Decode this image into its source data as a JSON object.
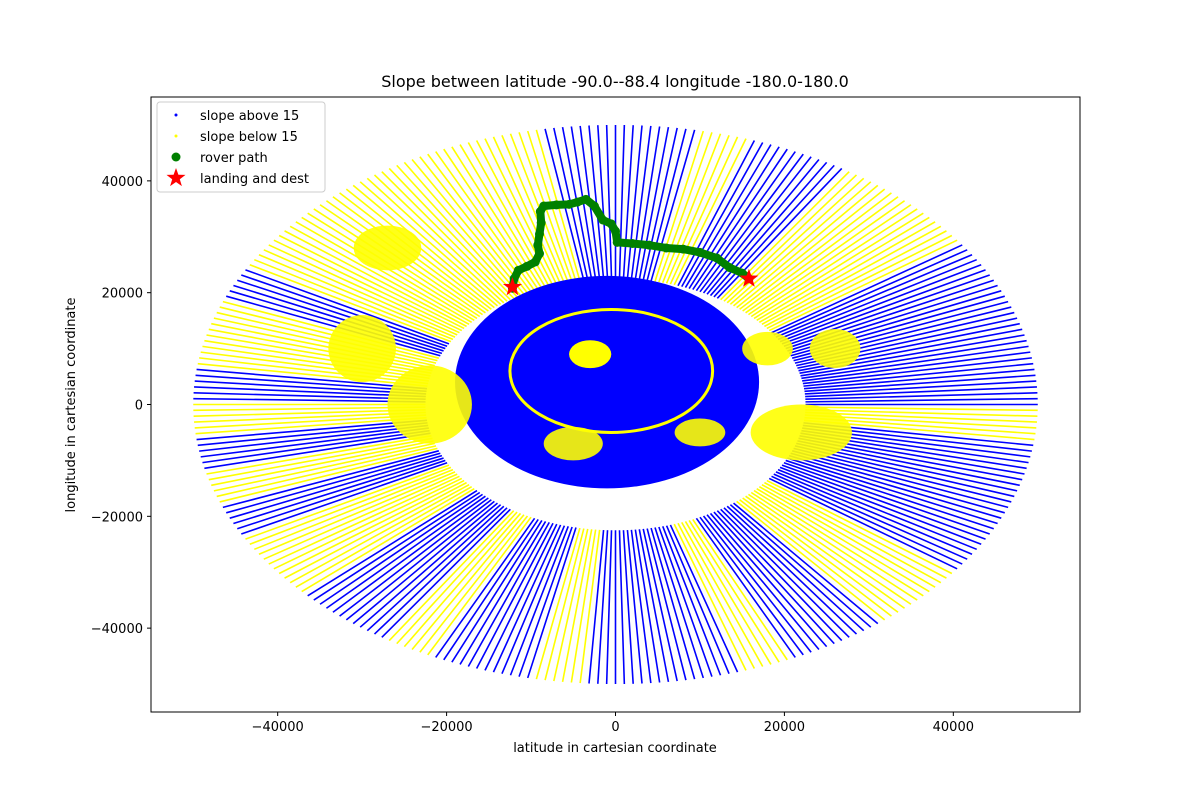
{
  "chart_data": {
    "type": "scatter",
    "title": "Slope between latitude -90.0--88.4 longitude -180.0-180.0",
    "xlabel": "latitude in cartesian coordinate",
    "ylabel": "longitude in cartesian coordinate",
    "xlim": [
      -55000,
      55000
    ],
    "ylim": [
      -55000,
      55000
    ],
    "xticks": [
      -40000,
      -20000,
      0,
      20000,
      40000
    ],
    "yticks": [
      -40000,
      -20000,
      0,
      20000,
      40000
    ],
    "xtick_labels": [
      "−40000",
      "−20000",
      "0",
      "20000",
      "40000"
    ],
    "ytick_labels": [
      "−40000",
      "−20000",
      "0",
      "20000",
      "40000"
    ],
    "grid": false,
    "legend_position": "upper-left",
    "series": [
      {
        "name": "slope above 15",
        "color": "#0000ff",
        "marker": "dot",
        "extent": {
          "x_radius": 50000,
          "y_radius": 50000
        }
      },
      {
        "name": "slope below 15",
        "color": "#ffff00",
        "marker": "dot",
        "extent": {
          "x_radius": 50000,
          "y_radius": 50000
        }
      },
      {
        "name": "rover path",
        "color": "#008000",
        "marker": "circle",
        "points": [
          [
            -12200,
            20800
          ],
          [
            -12000,
            22500
          ],
          [
            -11500,
            24000
          ],
          [
            -10500,
            24700
          ],
          [
            -9500,
            25500
          ],
          [
            -9000,
            27000
          ],
          [
            -9200,
            28500
          ],
          [
            -9000,
            30500
          ],
          [
            -8800,
            32500
          ],
          [
            -8900,
            34500
          ],
          [
            -8500,
            35500
          ],
          [
            -7000,
            35700
          ],
          [
            -5500,
            35800
          ],
          [
            -4500,
            36200
          ],
          [
            -3500,
            36700
          ],
          [
            -2500,
            35500
          ],
          [
            -1500,
            33000
          ],
          [
            -500,
            32300
          ],
          [
            0,
            31000
          ],
          [
            200,
            29000
          ],
          [
            2000,
            28800
          ],
          [
            4000,
            28500
          ],
          [
            6000,
            28000
          ],
          [
            8000,
            27800
          ],
          [
            10000,
            27200
          ],
          [
            12000,
            26200
          ],
          [
            13500,
            24500
          ],
          [
            15000,
            23500
          ],
          [
            15800,
            22500
          ]
        ]
      },
      {
        "name": "landing and dest",
        "color": "#ff0000",
        "marker": "star",
        "points": [
          [
            -12200,
            21000
          ],
          [
            15800,
            22500
          ]
        ]
      }
    ]
  }
}
